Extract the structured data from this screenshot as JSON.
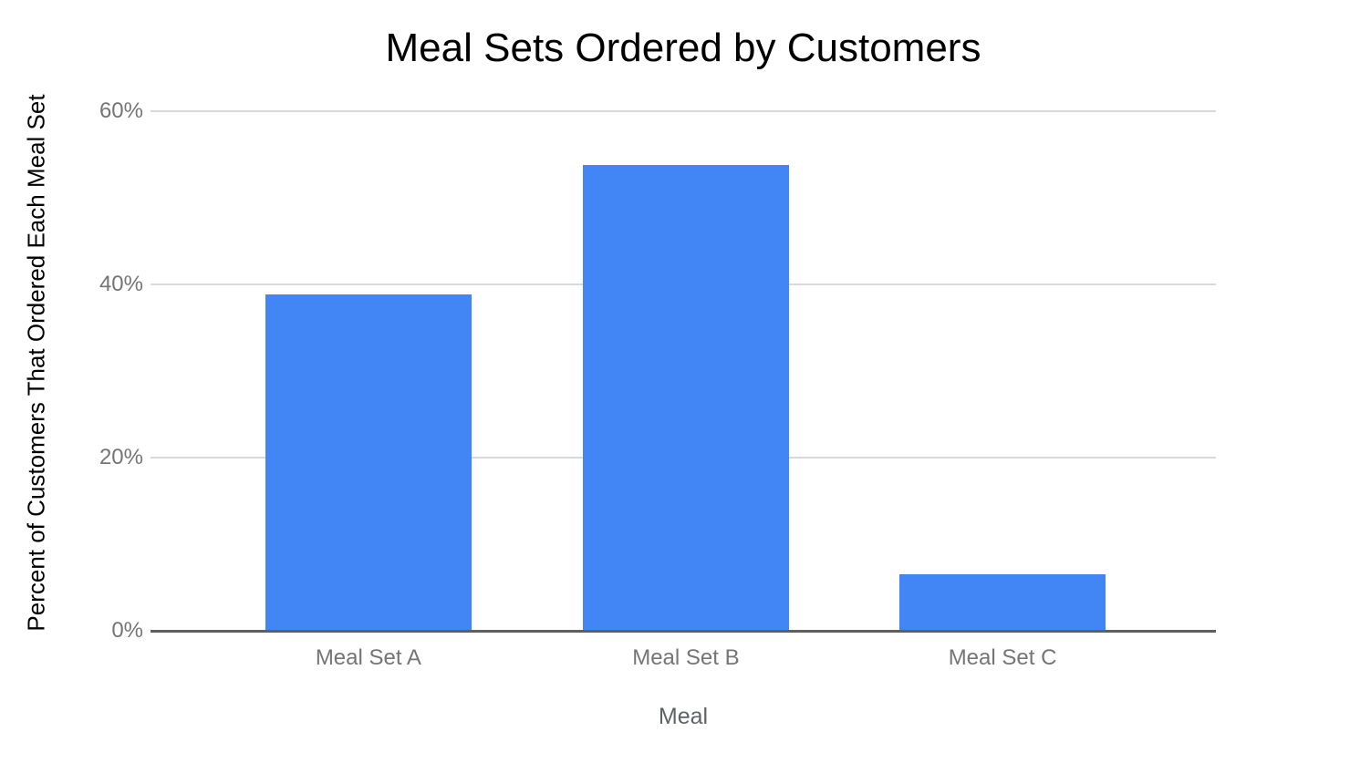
{
  "chart_data": {
    "type": "bar",
    "title": "Meal Sets Ordered by Customers",
    "xlabel": "Meal",
    "ylabel": "Percent of Customers That Ordered Each Meal Set",
    "categories": [
      "Meal Set A",
      "Meal Set B",
      "Meal Set C"
    ],
    "values": [
      38.8,
      53.8,
      6.5
    ],
    "ylim": [
      0,
      60
    ],
    "ytick_values": [
      0,
      20,
      40,
      60
    ],
    "ytick_labels": [
      "0%",
      "20%",
      "40%",
      "60%"
    ],
    "grid": true,
    "legend": "none",
    "colors": {
      "bar": "#4285f4",
      "gridline": "#d9d9d9",
      "baseline": "#5f5f5f",
      "tick_label": "#757575",
      "category_label": "#757575",
      "axis_title": "#5f6368",
      "title": "#000000",
      "background": "#ffffff"
    }
  }
}
